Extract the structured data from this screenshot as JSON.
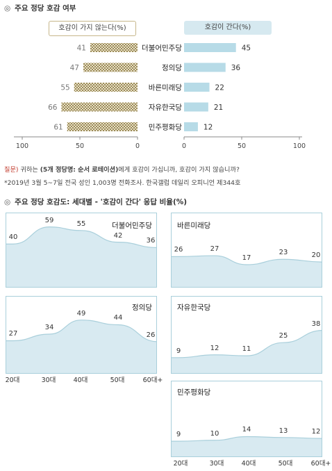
{
  "top": {
    "title": "주요 정당 호감 여부",
    "neg_label": "호감이 가지 않는다(%)",
    "pos_label": "호감이 간다(%)"
  },
  "bottom": {
    "title": "주요 정당 호감도: 세대별 - '호감이 간다' 응답 비율(%)"
  },
  "notes": {
    "question_label": "질문)",
    "question_pre": " 귀하는 ",
    "question_bold": "(5개 정당명: 순서 로테이션)",
    "question_post": "에게 호감이 가십니까, 호감이 가지 않습니까?",
    "source": "*2019년 3월 5~7일 전국 성인 1,003명 전화조사. 한국갤럽 데일리 오피니언 제344호"
  },
  "chart_data": [
    {
      "type": "bar",
      "title": "주요 정당 호감 여부",
      "categories": [
        "더불어민주당",
        "정의당",
        "바른미래당",
        "자유한국당",
        "민주평화당"
      ],
      "series": [
        {
          "name": "호감이 가지 않는다(%)",
          "values": [
            41,
            47,
            55,
            66,
            61
          ],
          "color": "#b9ab7a"
        },
        {
          "name": "호감이 간다(%)",
          "values": [
            45,
            36,
            22,
            21,
            12
          ],
          "color": "#b7dbe7"
        }
      ],
      "axis_ticks": [
        "100",
        "50",
        "0",
        "0",
        "50",
        "100"
      ],
      "xlim": [
        0,
        100
      ]
    },
    {
      "type": "area",
      "title": "주요 정당 호감도: 세대별 - '호감이 간다' 응답 비율(%)",
      "categories": [
        "20대",
        "30대",
        "40대",
        "50대",
        "60대+"
      ],
      "series": [
        {
          "name": "더불어민주당",
          "values": [
            40,
            59,
            55,
            42,
            36
          ]
        },
        {
          "name": "바른미래당",
          "values": [
            26,
            27,
            17,
            23,
            20
          ]
        },
        {
          "name": "정의당",
          "values": [
            27,
            34,
            49,
            44,
            26
          ]
        },
        {
          "name": "자유한국당",
          "values": [
            9,
            12,
            11,
            25,
            38
          ]
        },
        {
          "name": "민주평화당",
          "values": [
            9,
            10,
            14,
            13,
            12
          ]
        }
      ],
      "ylim": [
        0,
        100
      ],
      "fill_color": "#d8eaf1",
      "line_color": "#a9cfdb"
    }
  ]
}
